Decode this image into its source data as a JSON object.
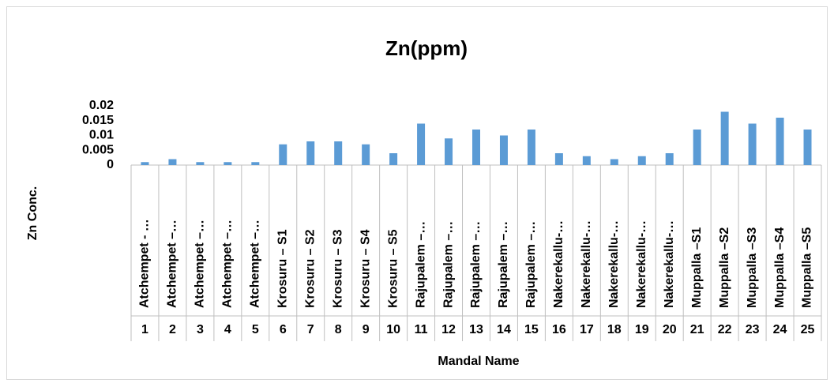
{
  "chart_data": {
    "type": "bar",
    "title": "Zn(ppm)",
    "categories": [
      "Atchempet - …",
      "Atchempet –…",
      "Atchempet –…",
      "Atchempet –…",
      "Atchempet –…",
      "Krosuru – S1",
      "Krosuru – S2",
      "Krosuru – S3",
      "Krosuru – S4",
      "Krosuru – S5",
      "Rajupalem –…",
      "Rajupalem –…",
      "Rajupalem –…",
      "Rajupalem –…",
      "Rajupalem –…",
      "Nakerekallu-…",
      "Nakerekallu-…",
      "Nakerekallu-…",
      "Nakerekallu-…",
      "Nakerekallu-…",
      "Muppalla –S1",
      "Muppalla –S2",
      "Muppalla –S3",
      "Muppalla –S4",
      "Muppalla –S5"
    ],
    "category_numbers": [
      1,
      2,
      3,
      4,
      5,
      6,
      7,
      8,
      9,
      10,
      11,
      12,
      13,
      14,
      15,
      16,
      17,
      18,
      19,
      20,
      21,
      22,
      23,
      24,
      25
    ],
    "values": [
      0.001,
      0.002,
      0.001,
      0.001,
      0.001,
      0.007,
      0.008,
      0.008,
      0.007,
      0.004,
      0.014,
      0.009,
      0.012,
      0.01,
      0.012,
      0.004,
      0.003,
      0.002,
      0.003,
      0.004,
      0.012,
      0.018,
      0.014,
      0.016,
      0.012
    ],
    "color": "#5b9bd5",
    "xlabel": "Mandal Name",
    "ylabel": "Zn Conc.",
    "ylim": [
      0,
      0.02
    ],
    "yticks": [
      0,
      0.005,
      0.01,
      0.015,
      0.02
    ],
    "grid": false
  }
}
